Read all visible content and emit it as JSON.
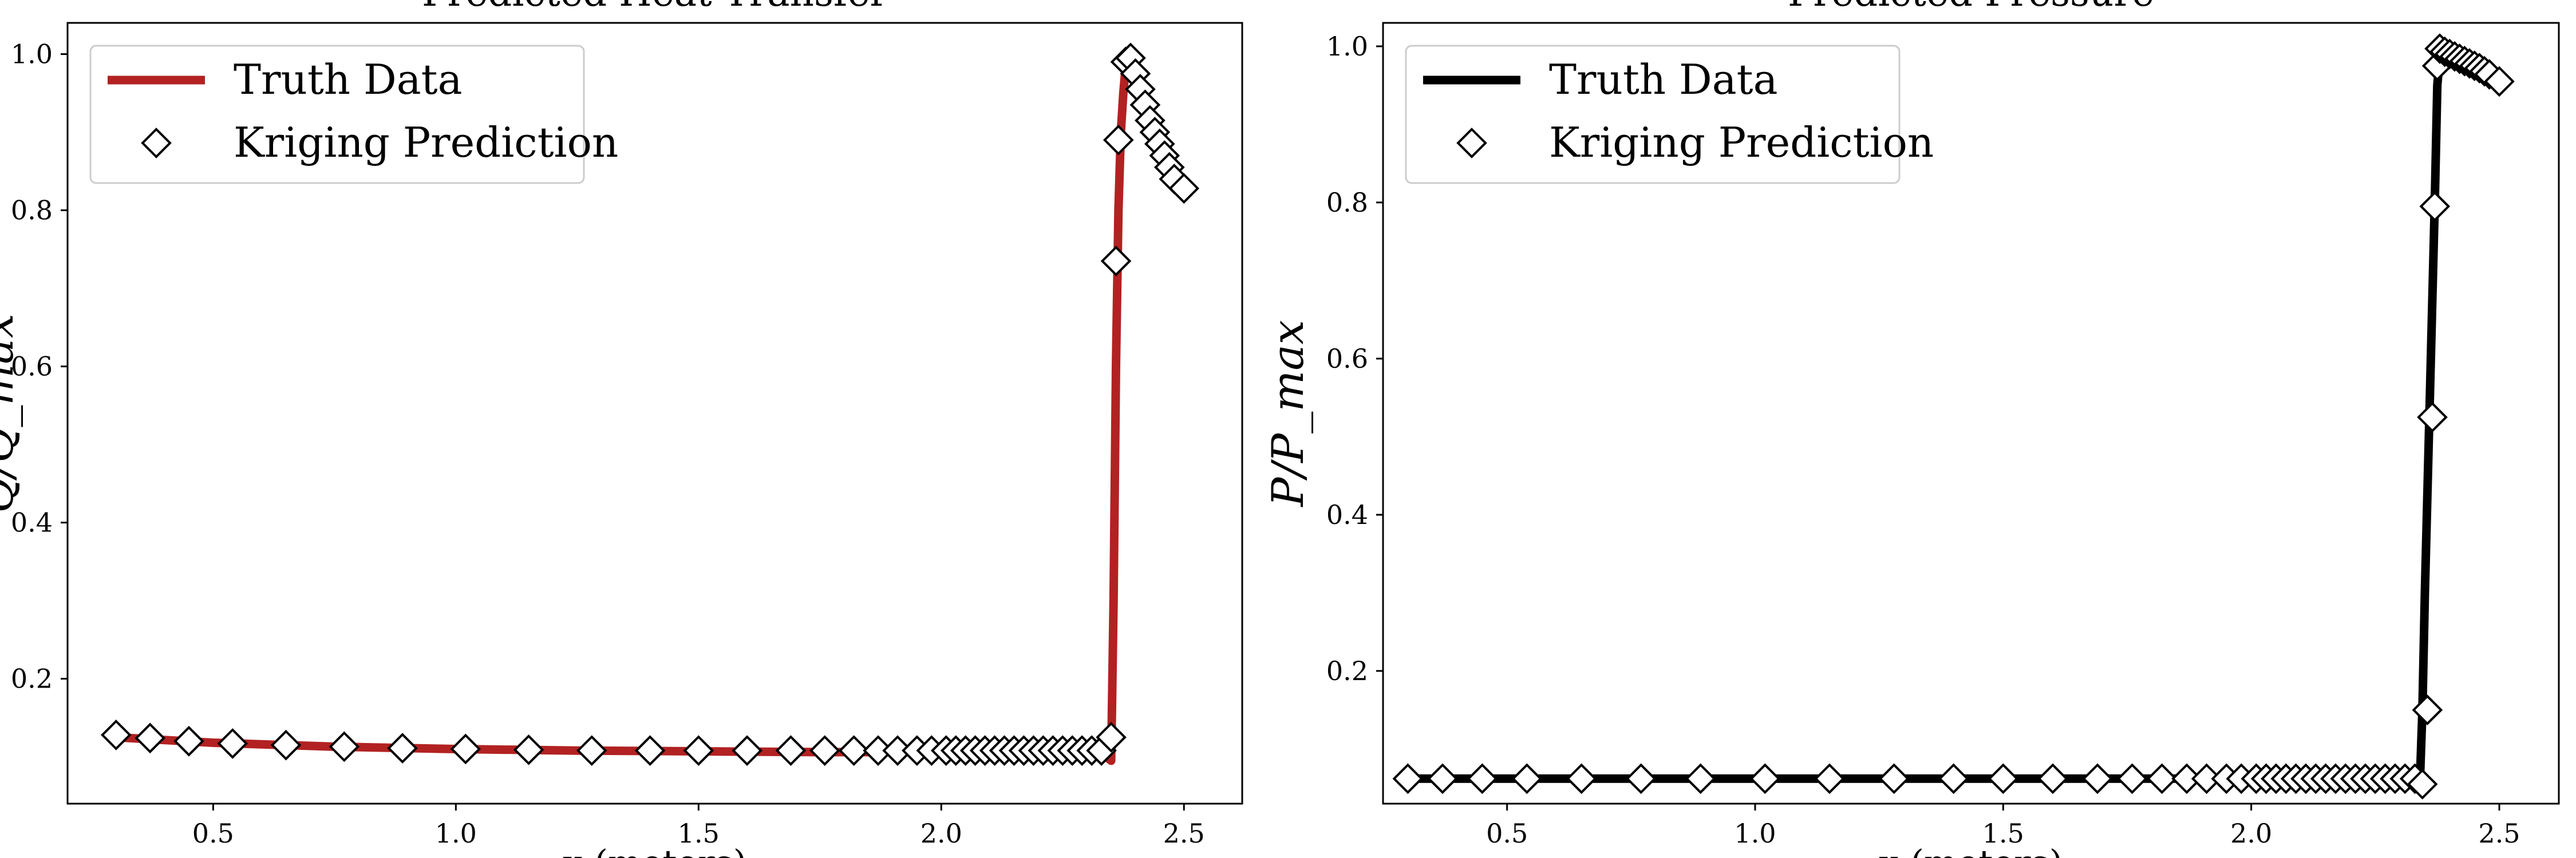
{
  "chart_data": [
    {
      "type": "line",
      "title": "Predicted Heat Transfer",
      "xlabel": "x (meters)",
      "ylabel": "Q/Q_max",
      "xlim": [
        0.2,
        2.62
      ],
      "ylim": [
        0.04,
        1.04
      ],
      "xticks": [
        0.5,
        1.0,
        1.5,
        2.0,
        2.5
      ],
      "yticks": [
        0.2,
        0.4,
        0.6,
        0.8,
        1.0
      ],
      "grid": false,
      "legend_position": "top-left",
      "colors": {
        "truth": "#b22222",
        "prediction_fill": "#ffffff",
        "prediction_edge": "#000000"
      },
      "series": [
        {
          "name": "Truth Data",
          "style": "line",
          "x": [
            0.3,
            0.5,
            0.75,
            1.0,
            1.25,
            1.5,
            1.75,
            2.0,
            2.25,
            2.32,
            2.34,
            2.35,
            2.355,
            2.36,
            2.365,
            2.37,
            2.375,
            2.38,
            2.39,
            2.4,
            2.42,
            2.44,
            2.46,
            2.48,
            2.5
          ],
          "y": [
            0.125,
            0.118,
            0.113,
            0.11,
            0.108,
            0.107,
            0.106,
            0.106,
            0.106,
            0.105,
            0.1,
            0.095,
            0.3,
            0.6,
            0.8,
            0.9,
            0.95,
            0.985,
            0.99,
            0.975,
            0.945,
            0.91,
            0.88,
            0.85,
            0.82
          ]
        },
        {
          "name": "Kriging Prediction",
          "style": "diamond",
          "x": [
            0.3,
            0.37,
            0.45,
            0.54,
            0.65,
            0.77,
            0.89,
            1.02,
            1.15,
            1.28,
            1.4,
            1.5,
            1.6,
            1.69,
            1.76,
            1.82,
            1.87,
            1.91,
            1.95,
            1.98,
            2.01,
            2.03,
            2.05,
            2.07,
            2.09,
            2.11,
            2.13,
            2.15,
            2.17,
            2.19,
            2.21,
            2.23,
            2.25,
            2.27,
            2.29,
            2.31,
            2.33,
            2.35,
            2.36,
            2.365,
            2.38,
            2.39,
            2.4,
            2.41,
            2.42,
            2.43,
            2.44,
            2.45,
            2.46,
            2.47,
            2.48,
            2.5
          ],
          "y": [
            0.128,
            0.124,
            0.12,
            0.117,
            0.115,
            0.113,
            0.111,
            0.11,
            0.109,
            0.108,
            0.108,
            0.108,
            0.108,
            0.108,
            0.108,
            0.108,
            0.108,
            0.108,
            0.108,
            0.108,
            0.108,
            0.108,
            0.108,
            0.108,
            0.108,
            0.108,
            0.108,
            0.108,
            0.108,
            0.108,
            0.108,
            0.108,
            0.108,
            0.108,
            0.108,
            0.108,
            0.108,
            0.125,
            0.735,
            0.89,
            0.99,
            0.995,
            0.975,
            0.955,
            0.935,
            0.915,
            0.9,
            0.885,
            0.87,
            0.855,
            0.84,
            0.828
          ]
        }
      ]
    },
    {
      "type": "line",
      "title": "Predicted Pressure",
      "xlabel": "x (meters)",
      "ylabel": "P/P_max",
      "xlim": [
        0.25,
        2.62
      ],
      "ylim": [
        0.03,
        1.03
      ],
      "xticks": [
        0.5,
        1.0,
        1.5,
        2.0,
        2.5
      ],
      "yticks": [
        0.2,
        0.4,
        0.6,
        0.8,
        1.0
      ],
      "grid": false,
      "legend_position": "top-left",
      "colors": {
        "truth": "#000000",
        "prediction_fill": "#ffffff",
        "prediction_edge": "#000000"
      },
      "series": [
        {
          "name": "Truth Data",
          "style": "line",
          "x": [
            0.3,
            0.75,
            1.25,
            1.75,
            2.0,
            2.25,
            2.33,
            2.34,
            2.345,
            2.35,
            2.36,
            2.37,
            2.375,
            2.38,
            2.4,
            2.45,
            2.5
          ],
          "y": [
            0.062,
            0.062,
            0.062,
            0.062,
            0.062,
            0.062,
            0.06,
            0.058,
            0.15,
            0.3,
            0.55,
            0.8,
            0.95,
            0.985,
            0.99,
            0.975,
            0.955
          ]
        },
        {
          "name": "Kriging Prediction",
          "style": "diamond",
          "x": [
            0.3,
            0.37,
            0.45,
            0.54,
            0.65,
            0.77,
            0.89,
            1.02,
            1.15,
            1.28,
            1.4,
            1.5,
            1.6,
            1.69,
            1.76,
            1.82,
            1.87,
            1.91,
            1.95,
            1.98,
            2.01,
            2.03,
            2.05,
            2.07,
            2.09,
            2.11,
            2.13,
            2.15,
            2.17,
            2.19,
            2.21,
            2.23,
            2.25,
            2.27,
            2.29,
            2.31,
            2.33,
            2.345,
            2.355,
            2.365,
            2.37,
            2.375,
            2.38,
            2.39,
            2.4,
            2.41,
            2.42,
            2.43,
            2.44,
            2.45,
            2.46,
            2.47,
            2.48,
            2.5
          ],
          "y": [
            0.062,
            0.062,
            0.062,
            0.062,
            0.062,
            0.062,
            0.062,
            0.062,
            0.062,
            0.062,
            0.062,
            0.062,
            0.062,
            0.062,
            0.062,
            0.062,
            0.062,
            0.062,
            0.062,
            0.062,
            0.062,
            0.062,
            0.062,
            0.062,
            0.062,
            0.062,
            0.062,
            0.062,
            0.062,
            0.062,
            0.062,
            0.062,
            0.062,
            0.062,
            0.062,
            0.062,
            0.062,
            0.055,
            0.15,
            0.525,
            0.795,
            0.975,
            0.997,
            0.993,
            0.99,
            0.987,
            0.984,
            0.981,
            0.978,
            0.975,
            0.972,
            0.968,
            0.964,
            0.955
          ]
        }
      ]
    }
  ]
}
